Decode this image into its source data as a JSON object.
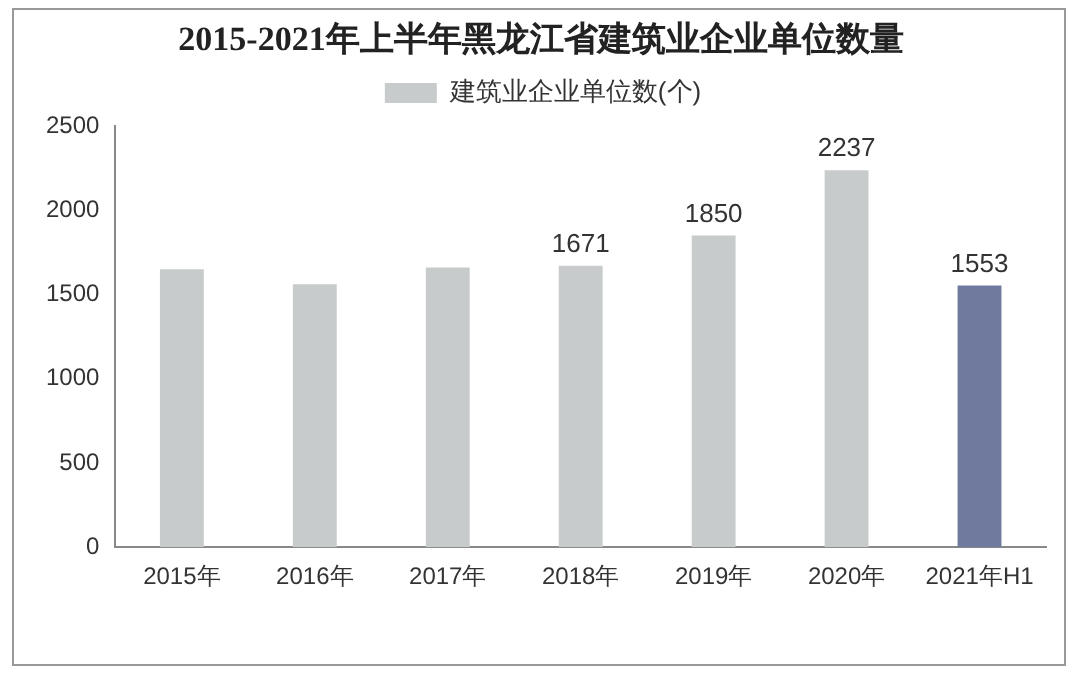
{
  "chart_data": {
    "type": "bar",
    "title": "2015-2021年上半年黑龙江省建筑业企业单位数量",
    "categories": [
      "2015年",
      "2016年",
      "2017年",
      "2018年",
      "2019年",
      "2020年",
      "2021年H1"
    ],
    "series": [
      {
        "name": "建筑业企业单位数(个)",
        "colors": [
          "#c8cbcb",
          "#c8cbcb",
          "#c8cbcb",
          "#c8cbcb",
          "#c8cbcb",
          "#c8cbcb",
          "#6f7a9e"
        ],
        "values": [
          1650,
          1560,
          1660,
          1671,
          1850,
          2237,
          1553
        ],
        "value_labels": [
          null,
          null,
          null,
          "1671",
          "1850",
          "2237",
          "1553"
        ]
      }
    ],
    "ylim": [
      0,
      2500
    ],
    "yticks": [
      0,
      500,
      1000,
      1500,
      2000,
      2500
    ],
    "grid": false,
    "legend": "top"
  }
}
